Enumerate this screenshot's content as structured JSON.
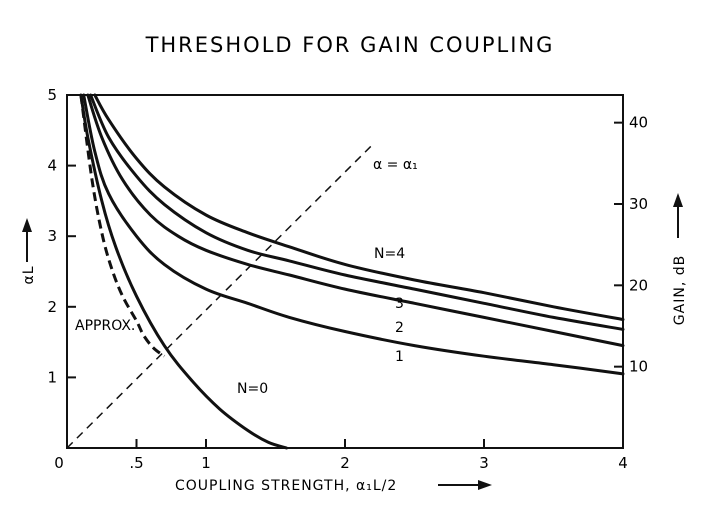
{
  "chart_data": {
    "type": "line",
    "title": "THRESHOLD FOR GAIN COUPLING",
    "xlabel": "COUPLING STRENGTH, α₁L/2",
    "ylabel": "αL",
    "y2label": "GAIN, dB",
    "xlim": [
      0,
      4
    ],
    "ylim": [
      0,
      5
    ],
    "y2lim": [
      0,
      43.4
    ],
    "x_ticks": [
      0,
      0.5,
      1,
      2,
      3,
      4
    ],
    "x_tick_labels": [
      "0",
      ".5",
      "1",
      "2",
      "3",
      "4"
    ],
    "y_ticks": [
      1,
      2,
      3,
      4,
      5
    ],
    "y_tick_labels": [
      "1",
      "2",
      "3",
      "4",
      "5"
    ],
    "y2_ticks": [
      10,
      20,
      30,
      40
    ],
    "y2_tick_labels": [
      "10",
      "20",
      "30",
      "40"
    ],
    "grid": false,
    "series": [
      {
        "name": "N=0",
        "x": [
          0.1,
          0.15,
          0.25,
          0.35,
          0.5,
          0.7,
          0.9,
          1.1,
          1.3,
          1.45,
          1.58
        ],
        "y": [
          5.0,
          4.4,
          3.5,
          2.85,
          2.15,
          1.45,
          0.95,
          0.55,
          0.25,
          0.08,
          0.0
        ]
      },
      {
        "name": "1",
        "x": [
          0.12,
          0.2,
          0.3,
          0.5,
          0.7,
          1.0,
          1.3,
          1.6,
          2.0,
          2.5,
          3.0,
          3.5,
          4.0
        ],
        "y": [
          5.0,
          4.2,
          3.6,
          3.0,
          2.6,
          2.25,
          2.05,
          1.85,
          1.65,
          1.45,
          1.3,
          1.18,
          1.05
        ]
      },
      {
        "name": "2",
        "x": [
          0.15,
          0.25,
          0.4,
          0.6,
          0.8,
          1.0,
          1.3,
          1.6,
          2.0,
          2.5,
          3.0,
          3.5,
          4.0
        ],
        "y": [
          5.0,
          4.4,
          3.8,
          3.3,
          3.0,
          2.8,
          2.6,
          2.45,
          2.25,
          2.05,
          1.85,
          1.65,
          1.45
        ]
      },
      {
        "name": "3",
        "x": [
          0.17,
          0.3,
          0.5,
          0.7,
          1.0,
          1.3,
          1.6,
          2.0,
          2.5,
          3.0,
          3.5,
          4.0
        ],
        "y": [
          5.0,
          4.4,
          3.85,
          3.45,
          3.05,
          2.8,
          2.65,
          2.45,
          2.25,
          2.05,
          1.85,
          1.68
        ]
      },
      {
        "name": "N=4",
        "x": [
          0.2,
          0.3,
          0.5,
          0.7,
          1.0,
          1.3,
          1.6,
          2.0,
          2.5,
          3.0,
          3.5,
          4.0
        ],
        "y": [
          5.0,
          4.65,
          4.1,
          3.7,
          3.3,
          3.05,
          2.85,
          2.6,
          2.38,
          2.2,
          2.0,
          1.82
        ]
      }
    ],
    "approx_curve": {
      "name": "APPROX.",
      "x": [
        0.1,
        0.18,
        0.25,
        0.32,
        0.4,
        0.5,
        0.55,
        0.62,
        0.7
      ],
      "y": [
        5.0,
        3.8,
        3.05,
        2.55,
        2.15,
        1.8,
        1.6,
        1.42,
        1.3
      ]
    },
    "diagonal": {
      "label": "α = α₁",
      "x": [
        0,
        2.2
      ],
      "y": [
        0,
        4.3
      ]
    },
    "annotations": {
      "n0": "N=0",
      "n1": "1",
      "n2": "2",
      "n3": "3",
      "n4": "N=4",
      "approx": "APPROX.",
      "alpha_eq": "α = α₁"
    }
  }
}
